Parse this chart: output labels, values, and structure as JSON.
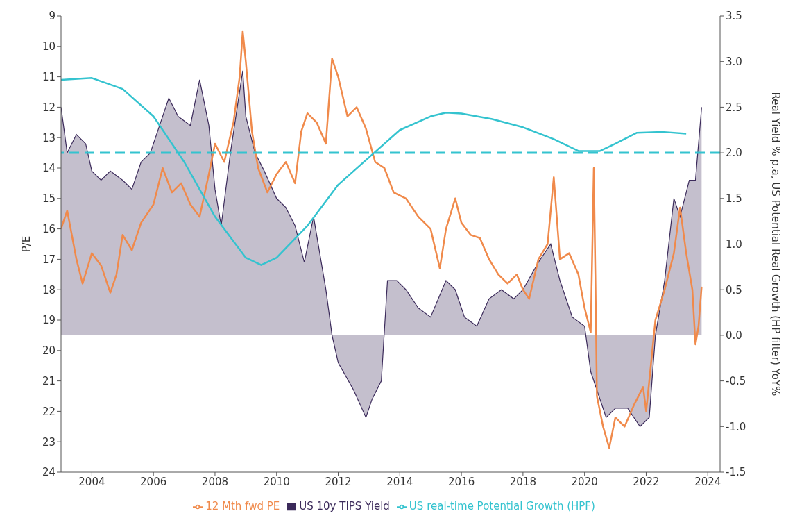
{
  "chart_data": {
    "type": "line",
    "ylabel": "P/E",
    "y2label": "Real Yield % p.a, US Potential Real Growth (HP filter) YoY%",
    "xlim": [
      2003,
      2024.4
    ],
    "xticks": [
      2004,
      2006,
      2008,
      2010,
      2012,
      2014,
      2016,
      2018,
      2020,
      2022,
      2024
    ],
    "ylim": [
      24,
      9
    ],
    "yticks": [
      9,
      10,
      11,
      12,
      13,
      14,
      15,
      16,
      17,
      18,
      19,
      20,
      21,
      22,
      23,
      24
    ],
    "y2lim": [
      -1.5,
      3.5
    ],
    "y2ticks": [
      {
        "value": -1.5,
        "label": "-1.5"
      },
      {
        "value": -1,
        "label": "-1.0"
      },
      {
        "value": -0.5,
        "label": "-0.5"
      },
      {
        "value": 0,
        "label": "0.0"
      },
      {
        "value": 0.5,
        "label": "0.5"
      },
      {
        "value": 1,
        "label": "1.0"
      },
      {
        "value": 1.5,
        "label": "1.5"
      },
      {
        "value": 2,
        "label": "2.0"
      },
      {
        "value": 2.5,
        "label": "2.5"
      },
      {
        "value": 3,
        "label": "3.0"
      },
      {
        "value": 3.5,
        "label": "3.5"
      }
    ],
    "grid": false,
    "legend": "bottom",
    "ref_lines": [
      {
        "axis": "y2",
        "value": 2,
        "color": "#34c3cf",
        "line_style": "dashed"
      }
    ],
    "series": [
      {
        "name": "12 Mth fwd PE",
        "color": "#f08a4b",
        "x": [
          2003.0,
          2003.2,
          2003.5,
          2003.7,
          2004.0,
          2004.3,
          2004.6,
          2004.8,
          2005.0,
          2005.3,
          2005.6,
          2006.0,
          2006.3,
          2006.6,
          2006.9,
          2007.2,
          2007.5,
          2007.8,
          2008.0,
          2008.3,
          2008.6,
          2008.8,
          2008.9,
          2009.0,
          2009.2,
          2009.4,
          2009.7,
          2010.0,
          2010.3,
          2010.6,
          2010.8,
          2011.0,
          2011.3,
          2011.6,
          2011.8,
          2012.0,
          2012.3,
          2012.6,
          2012.9,
          2013.2,
          2013.5,
          2013.8,
          2014.2,
          2014.6,
          2015.0,
          2015.3,
          2015.5,
          2015.8,
          2016.0,
          2016.3,
          2016.6,
          2016.9,
          2017.2,
          2017.5,
          2017.8,
          2018.0,
          2018.2,
          2018.5,
          2018.8,
          2019.0,
          2019.2,
          2019.5,
          2019.8,
          2020.0,
          2020.2,
          2020.3,
          2020.35,
          2020.4,
          2020.6,
          2020.8,
          2021.0,
          2021.3,
          2021.6,
          2021.9,
          2022.0,
          2022.3,
          2022.6,
          2022.9,
          2023.1,
          2023.3,
          2023.5,
          2023.6,
          2023.7,
          2023.8
        ],
        "values": [
          16,
          15.4,
          17,
          17.8,
          16.8,
          17.2,
          18.1,
          17.5,
          16.2,
          16.7,
          15.8,
          15.2,
          14,
          14.8,
          14.5,
          15.2,
          15.6,
          14.2,
          13.2,
          13.8,
          12.5,
          11,
          9.5,
          10.5,
          12.8,
          14,
          14.8,
          14.2,
          13.8,
          14.5,
          12.8,
          12.2,
          12.5,
          13.2,
          10.4,
          11,
          12.3,
          12,
          12.7,
          13.8,
          14,
          14.8,
          15,
          15.6,
          16,
          17.3,
          16,
          15,
          15.8,
          16.2,
          16.3,
          17,
          17.5,
          17.8,
          17.5,
          18,
          18.3,
          17,
          16.5,
          14.3,
          17,
          16.8,
          17.5,
          18.6,
          19.4,
          14,
          17.5,
          21.5,
          22.5,
          23.2,
          22.2,
          22.5,
          21.8,
          21.2,
          22,
          19,
          18,
          16.8,
          15.3,
          16.8,
          18,
          19.8,
          19.2,
          17.9
        ]
      },
      {
        "name": "US 10y TIPS Yield",
        "type": "area",
        "axis": "y2",
        "color": "#3b2a5a",
        "x": [
          2003.0,
          2003.2,
          2003.5,
          2003.8,
          2004.0,
          2004.3,
          2004.6,
          2005.0,
          2005.3,
          2005.6,
          2005.9,
          2006.2,
          2006.5,
          2006.8,
          2007.2,
          2007.5,
          2007.8,
          2008.0,
          2008.2,
          2008.5,
          2008.9,
          2009.0,
          2009.3,
          2009.6,
          2010.0,
          2010.3,
          2010.6,
          2010.9,
          2011.2,
          2011.6,
          2011.8,
          2012.0,
          2012.5,
          2012.9,
          2013.1,
          2013.4,
          2013.6,
          2013.9,
          2014.2,
          2014.6,
          2015.0,
          2015.5,
          2015.8,
          2016.1,
          2016.5,
          2016.9,
          2017.3,
          2017.7,
          2018.0,
          2018.5,
          2018.9,
          2019.2,
          2019.6,
          2020.0,
          2020.2,
          2020.4,
          2020.7,
          2021.0,
          2021.4,
          2021.8,
          2022.1,
          2022.3,
          2022.6,
          2022.9,
          2023.1,
          2023.4,
          2023.6,
          2023.75,
          2023.8
        ],
        "values": [
          2.5,
          2,
          2.2,
          2.1,
          1.8,
          1.7,
          1.8,
          1.7,
          1.6,
          1.9,
          2,
          2.3,
          2.6,
          2.4,
          2.3,
          2.8,
          2.3,
          1.6,
          1.2,
          2,
          2.9,
          2.4,
          2,
          1.8,
          1.5,
          1.4,
          1.2,
          0.8,
          1.3,
          0.5,
          0,
          -0.3,
          -0.6,
          -0.9,
          -0.7,
          -0.5,
          0.6,
          0.6,
          0.5,
          0.3,
          0.2,
          0.6,
          0.5,
          0.2,
          0.1,
          0.4,
          0.5,
          0.4,
          0.5,
          0.8,
          1,
          0.6,
          0.2,
          0.1,
          -0.4,
          -0.6,
          -0.9,
          -0.8,
          -0.8,
          -1,
          -0.9,
          0,
          0.6,
          1.5,
          1.3,
          1.7,
          1.7,
          2.3,
          2.5
        ]
      },
      {
        "name": "US real-time Potential Growth (HPF)",
        "axis": "y2",
        "color": "#34c3cf",
        "x": [
          2003.0,
          2004.0,
          2005.0,
          2006.0,
          2007.0,
          2008.0,
          2009.0,
          2009.5,
          2010.0,
          2011.0,
          2012.0,
          2013.0,
          2014.0,
          2015.0,
          2015.5,
          2016.0,
          2017.0,
          2018.0,
          2019.0,
          2019.8,
          2020.5,
          2021.0,
          2021.7,
          2022.5,
          2023.3
        ],
        "values": [
          2.8,
          2.82,
          2.7,
          2.4,
          1.9,
          1.3,
          0.85,
          0.77,
          0.85,
          1.2,
          1.65,
          1.95,
          2.25,
          2.4,
          2.44,
          2.43,
          2.37,
          2.28,
          2.15,
          2.02,
          2.02,
          2.1,
          2.22,
          2.23,
          2.21
        ]
      }
    ]
  }
}
